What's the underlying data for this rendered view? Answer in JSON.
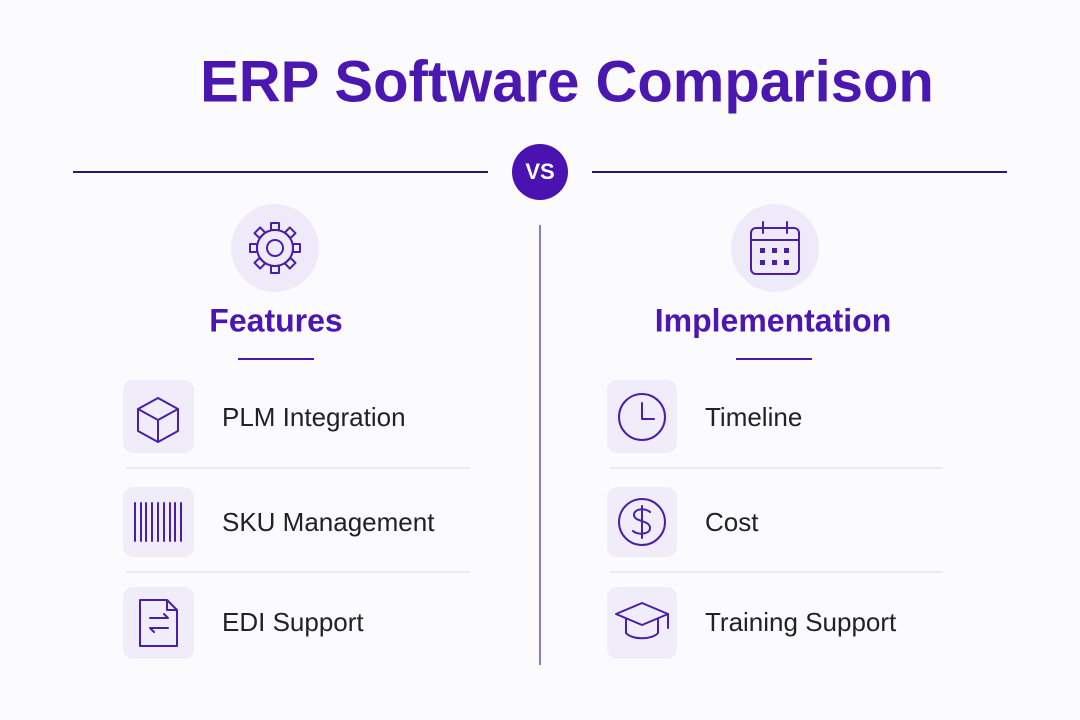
{
  "header": {
    "title": "ERP Software Comparison",
    "divider_label": "VS"
  },
  "columns": [
    {
      "heading": "Features",
      "items": [
        "PLM Integration",
        "SKU Management",
        "EDI Support"
      ]
    },
    {
      "heading": "Implementation",
      "items": [
        "Timeline",
        "Cost",
        "Training Support"
      ]
    }
  ]
}
